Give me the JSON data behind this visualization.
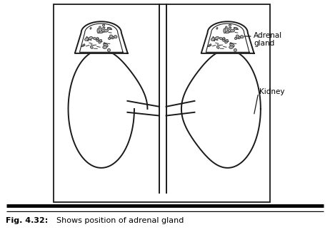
{
  "title_bold": "Fig. 4.32:",
  "title_rest": "  Shows position of adrenal gland",
  "adrenal_label": "Adrenal\ngland",
  "kidney_label": "Kidney",
  "bg_color": "#ffffff",
  "line_color": "#1a1a1a"
}
